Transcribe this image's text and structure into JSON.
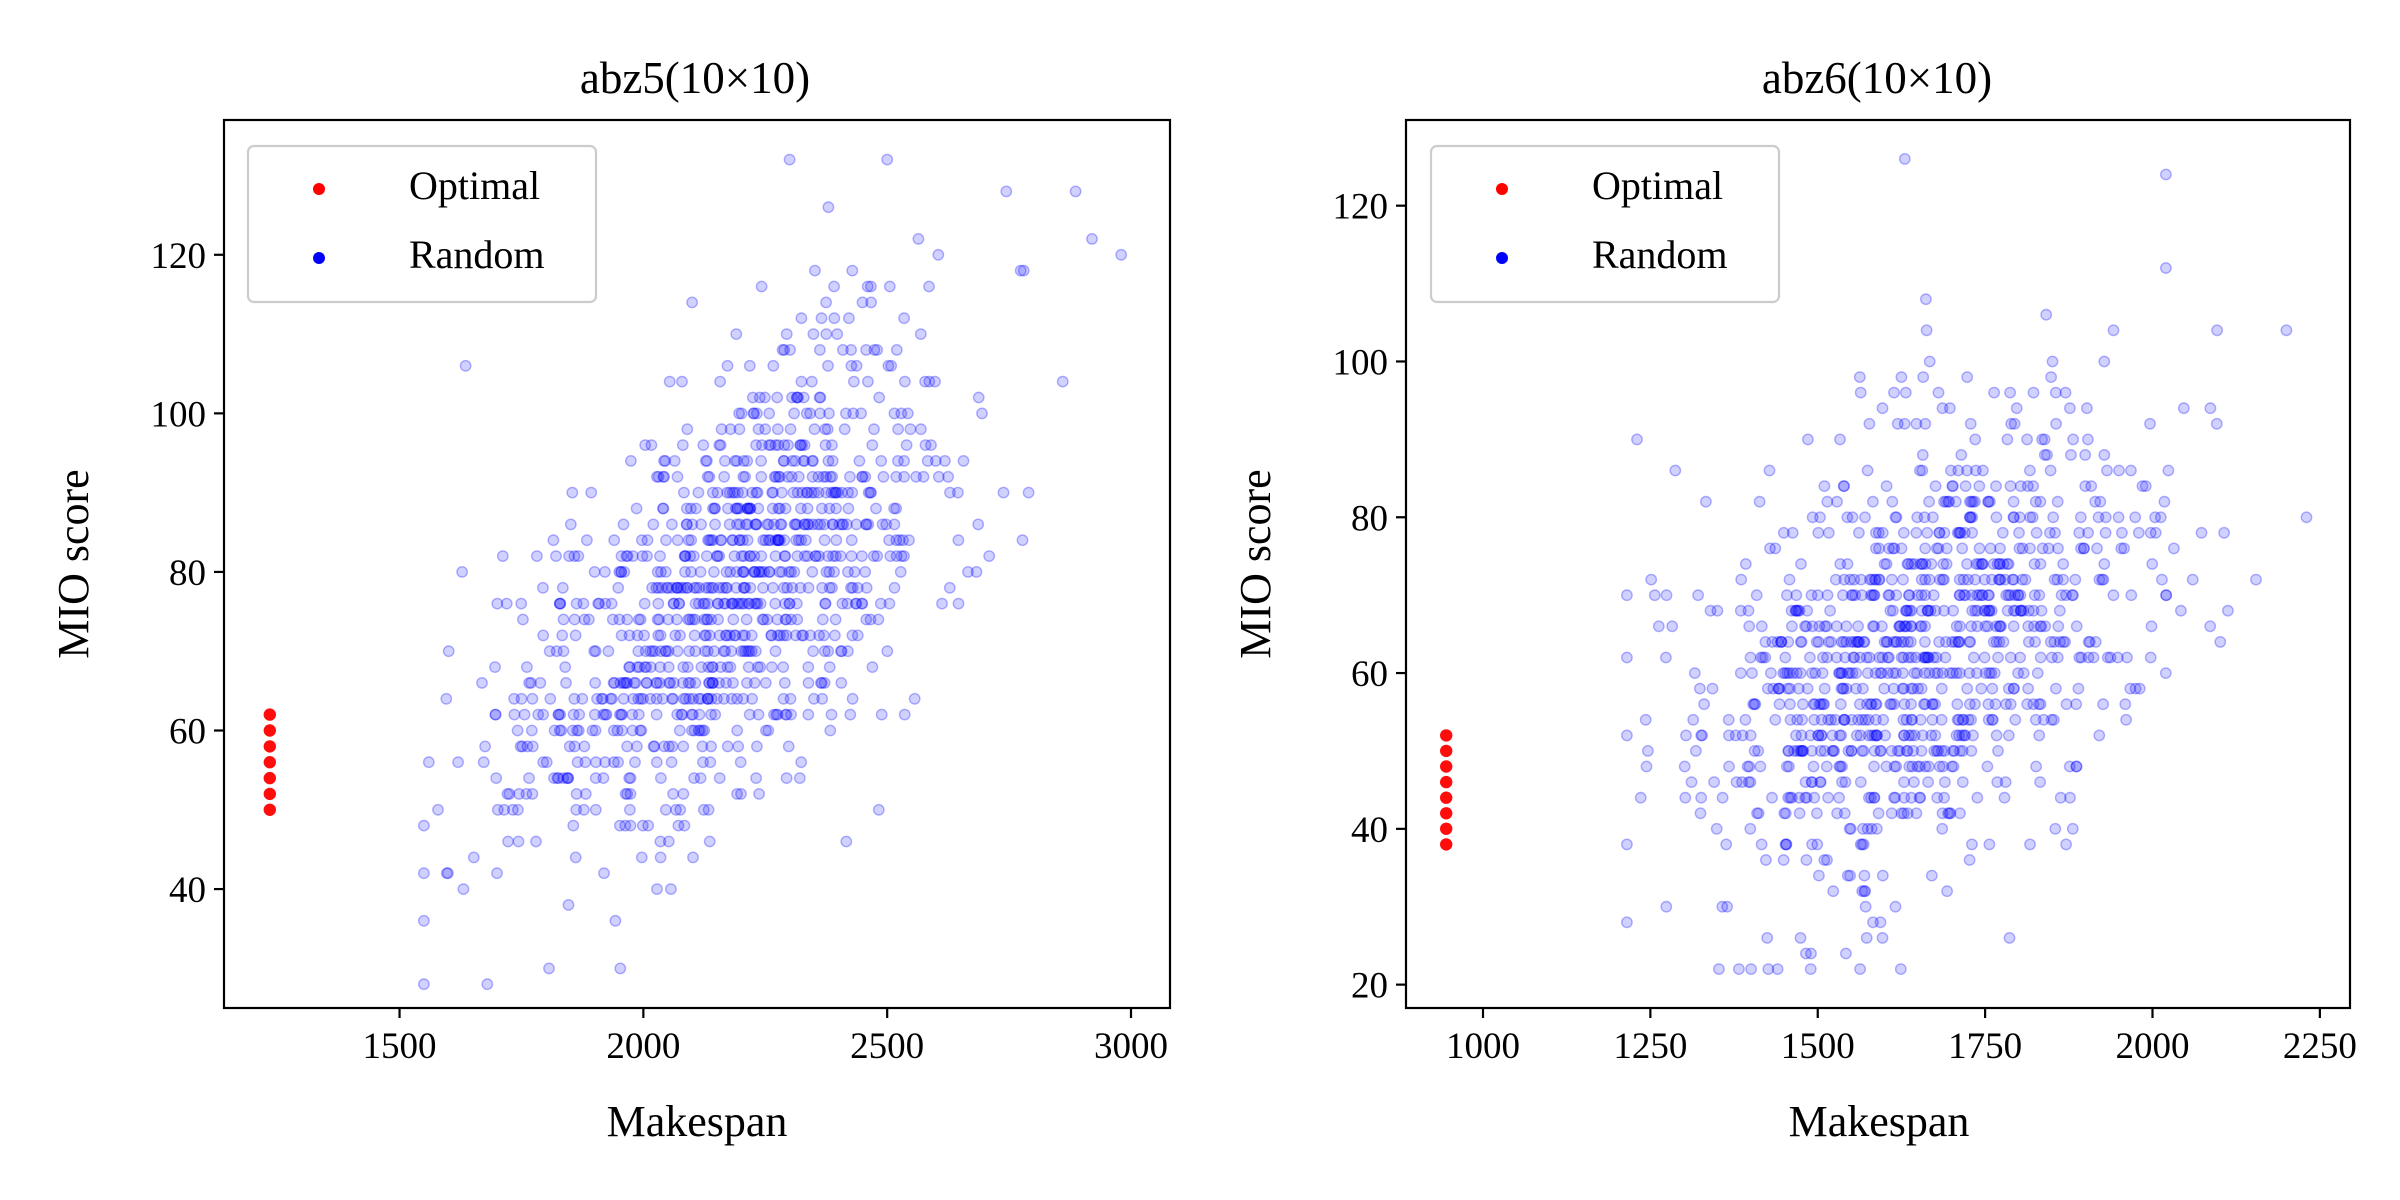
{
  "figure": {
    "colors": {
      "optimal": "#ff0000",
      "random": "#0000ff"
    }
  },
  "chart_data": [
    {
      "type": "scatter",
      "title": "abz5(10×10)",
      "xlabel": "Makespan",
      "ylabel": "MIO score",
      "xlim": [
        1140,
        3080
      ],
      "ylim": [
        25,
        137
      ],
      "xticks": [
        1500,
        2000,
        2500,
        3000
      ],
      "yticks": [
        40,
        60,
        80,
        100,
        120
      ],
      "xtick_labels": [
        "1500",
        "2000",
        "2500",
        "3000"
      ],
      "ytick_labels": [
        "40",
        "60",
        "80",
        "100",
        "120"
      ],
      "legend": {
        "position": "upper-left",
        "entries": [
          "Optimal",
          "Random"
        ]
      },
      "series": [
        {
          "name": "Optimal",
          "color": "#ff0000",
          "x_value": 1234,
          "y_values": [
            50,
            52,
            54,
            56,
            58,
            60,
            62
          ]
        },
        {
          "name": "Random",
          "color": "#0000ff",
          "alpha": 0.18,
          "count": 1000,
          "x_range": [
            1550,
            2980
          ],
          "y_range": [
            28,
            132
          ],
          "x_mean": 2160,
          "x_sd": 230,
          "y_intercept": -10,
          "y_slope": 0.04,
          "y_sd": 13,
          "y_step": 2,
          "seed": 17,
          "extremes": [
            [
              1680,
              28
            ],
            [
              1560,
              56
            ],
            [
              1620,
              56
            ],
            [
              2300,
              132
            ],
            [
              2500,
              132
            ],
            [
              2920,
              122
            ],
            [
              2980,
              120
            ],
            [
              2780,
              118
            ],
            [
              2860,
              104
            ],
            [
              2790,
              90
            ]
          ]
        }
      ]
    },
    {
      "type": "scatter",
      "title": "abz6(10×10)",
      "xlabel": "Makespan",
      "ylabel": "MIO score",
      "xlim": [
        885,
        2295
      ],
      "ylim": [
        17,
        131
      ],
      "xticks": [
        1000,
        1250,
        1500,
        1750,
        2000,
        2250
      ],
      "yticks": [
        20,
        40,
        60,
        80,
        100,
        120
      ],
      "xtick_labels": [
        "1000",
        "1250",
        "1500",
        "1750",
        "2000",
        "2250"
      ],
      "ytick_labels": [
        "20",
        "40",
        "60",
        "80",
        "100",
        "120"
      ],
      "legend": {
        "position": "upper-left",
        "entries": [
          "Optimal",
          "Random"
        ]
      },
      "series": [
        {
          "name": "Optimal",
          "color": "#ff0000",
          "x_value": 945,
          "y_values": [
            38,
            40,
            42,
            44,
            46,
            48,
            50,
            52
          ]
        },
        {
          "name": "Random",
          "color": "#0000ff",
          "alpha": 0.18,
          "count": 1000,
          "x_range": [
            1215,
            2230
          ],
          "y_range": [
            22,
            126
          ],
          "x_mean": 1655,
          "x_sd": 170,
          "y_intercept": 4,
          "y_slope": 0.036,
          "y_sd": 14,
          "y_step": 2,
          "seed": 29,
          "extremes": [
            [
              1440,
              22
            ],
            [
              1630,
              126
            ],
            [
              2020,
              124
            ],
            [
              2230,
              80
            ],
            [
              2200,
              104
            ],
            [
              1215,
              70
            ],
            [
              1230,
              90
            ],
            [
              2020,
              112
            ]
          ]
        }
      ]
    }
  ]
}
